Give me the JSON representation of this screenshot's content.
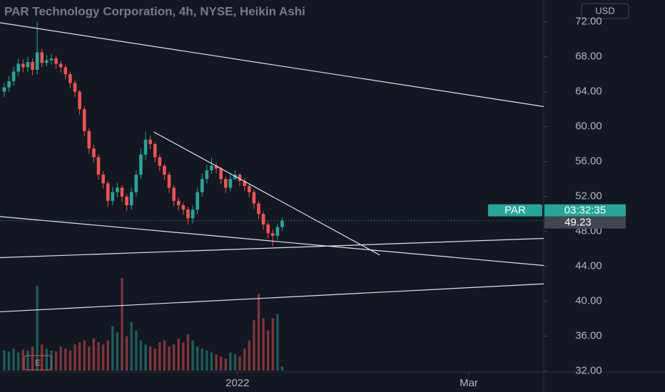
{
  "chart_data": {
    "type": "candlestick",
    "title": "PAR Technology Corporation, 4h, NYSE, Heikin Ashi",
    "currency": "USD",
    "symbol": "PAR",
    "countdown": "03:32:35",
    "last_price": 49.23,
    "event_badge": "E",
    "up_color": "#26a69a",
    "down_color": "#ef5350",
    "open": [
      64.0,
      64.5,
      65.2,
      66.3,
      67.2,
      66.8,
      67.4,
      66.5,
      68.5,
      67.3,
      67.6,
      67.8,
      67.2,
      66.8,
      66.0,
      65.0,
      64.0,
      62.0,
      59.5,
      57.5,
      56.5,
      54.5,
      53.5,
      51.5,
      52.5,
      53.0,
      52.0,
      51.0,
      52.5,
      54.5,
      56.8,
      58.5,
      58.0,
      56.5,
      55.5,
      54.5,
      53.0,
      51.5,
      51.0,
      50.5,
      49.5,
      50.5,
      52.5,
      54.0,
      55.0,
      55.5,
      55.2,
      54.0,
      53.0,
      54.0,
      54.5,
      53.8,
      53.2,
      52.5,
      51.2,
      50.0,
      48.8,
      47.8,
      47.5,
      48.5
    ],
    "high": [
      65.0,
      65.8,
      66.9,
      67.8,
      67.7,
      68.0,
      67.8,
      72.0,
      68.9,
      68.2,
      68.3,
      68.1,
      67.5,
      67.1,
      66.3,
      65.3,
      64.2,
      62.3,
      59.8,
      57.9,
      56.8,
      54.9,
      53.8,
      53.1,
      53.6,
      53.3,
      52.3,
      53.0,
      55.0,
      57.5,
      59.4,
      59.0,
      58.2,
      56.8,
      55.8,
      54.8,
      53.3,
      51.9,
      51.3,
      50.8,
      51.0,
      53.0,
      54.6,
      55.6,
      56.4,
      55.9,
      55.4,
      54.3,
      54.6,
      55.0,
      54.7,
      54.1,
      53.5,
      52.8,
      51.5,
      50.3,
      49.1,
      48.2,
      48.9,
      49.6
    ],
    "low": [
      63.4,
      64.0,
      64.7,
      65.8,
      66.2,
      66.3,
      65.9,
      66.0,
      66.8,
      66.9,
      67.1,
      66.6,
      66.2,
      65.4,
      64.4,
      63.4,
      61.4,
      58.9,
      56.9,
      55.9,
      53.9,
      52.9,
      50.8,
      51.0,
      51.9,
      51.4,
      50.4,
      50.5,
      52.0,
      54.0,
      56.2,
      57.4,
      55.9,
      54.9,
      53.9,
      52.4,
      50.9,
      50.4,
      49.9,
      48.8,
      48.9,
      50.0,
      52.0,
      53.5,
      54.6,
      54.6,
      53.4,
      52.4,
      52.6,
      53.9,
      53.2,
      52.6,
      51.9,
      50.6,
      49.4,
      48.2,
      47.2,
      46.3,
      47.0,
      48.1
    ],
    "close": [
      64.5,
      65.2,
      66.3,
      67.2,
      66.8,
      67.4,
      66.5,
      68.5,
      67.3,
      67.6,
      67.8,
      67.2,
      66.8,
      66.0,
      65.0,
      64.0,
      62.0,
      59.5,
      57.5,
      56.5,
      54.5,
      53.5,
      51.5,
      52.5,
      53.0,
      52.0,
      51.0,
      52.5,
      54.5,
      56.8,
      58.5,
      58.0,
      56.5,
      55.5,
      54.5,
      53.0,
      51.5,
      51.0,
      50.5,
      49.5,
      50.5,
      52.5,
      54.0,
      55.0,
      55.5,
      55.2,
      54.0,
      53.0,
      54.0,
      54.5,
      53.8,
      53.2,
      52.5,
      51.2,
      50.0,
      48.8,
      47.8,
      47.5,
      48.5,
      49.23
    ],
    "volume": [
      100,
      95,
      110,
      90,
      105,
      100,
      120,
      420,
      130,
      110,
      100,
      95,
      120,
      110,
      100,
      130,
      140,
      150,
      120,
      160,
      140,
      130,
      150,
      220,
      190,
      460,
      170,
      240,
      200,
      150,
      130,
      120,
      110,
      140,
      150,
      120,
      130,
      160,
      140,
      180,
      150,
      120,
      110,
      100,
      90,
      80,
      70,
      60,
      90,
      80,
      70,
      110,
      150,
      250,
      380,
      260,
      200,
      260,
      280,
      20
    ],
    "xlim": [
      -0.9,
      114.5
    ],
    "xticks": [
      {
        "value": 49.5,
        "label": "2022"
      },
      {
        "value": 98.6,
        "label": "Mar"
      }
    ],
    "ylim": [
      31.9,
      74.5
    ],
    "yticks": [
      {
        "value": 72,
        "label": "72.00"
      },
      {
        "value": 68,
        "label": "68.00"
      },
      {
        "value": 64,
        "label": "64.00"
      },
      {
        "value": 60,
        "label": "60.00"
      },
      {
        "value": 56,
        "label": "56.00"
      },
      {
        "value": 52,
        "label": "52.00"
      },
      {
        "value": 48,
        "label": "48.00"
      },
      {
        "value": 44,
        "label": "44.00"
      },
      {
        "value": 40,
        "label": "40.00"
      },
      {
        "value": 36,
        "label": "36.00"
      },
      {
        "value": 32,
        "label": "32.00"
      }
    ],
    "trendlines": [
      {
        "x": [
          -0.9,
          114.5
        ],
        "y": [
          71.9,
          62.3
        ]
      },
      {
        "x": [
          -0.9,
          114.5
        ],
        "y": [
          49.7,
          44.1
        ]
      },
      {
        "x": [
          -0.9,
          114.5
        ],
        "y": [
          45.0,
          47.2
        ]
      },
      {
        "x": [
          -0.9,
          114.5
        ],
        "y": [
          38.8,
          42.0
        ]
      },
      {
        "x": [
          31.7,
          79.7
        ],
        "y": [
          59.4,
          45.3
        ]
      }
    ]
  }
}
